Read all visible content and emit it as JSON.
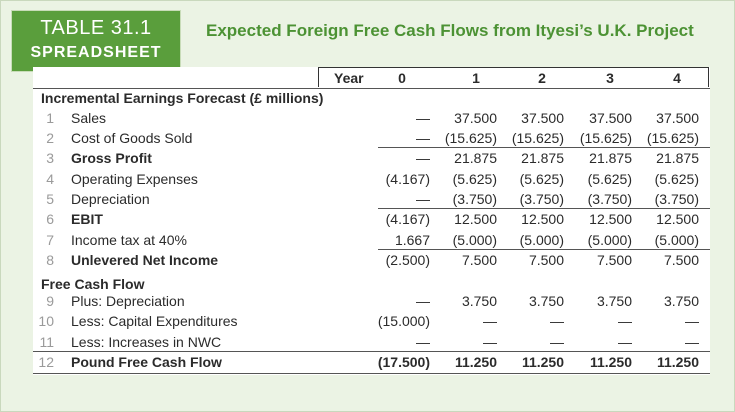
{
  "badge": {
    "line1": "TABLE 31.1",
    "line2": "SPREADSHEET"
  },
  "title": "Expected Foreign Free Cash Flows from Ityesi’s U.K. Project",
  "header": {
    "year_label": "Year",
    "years": [
      "0",
      "1",
      "2",
      "3",
      "4"
    ]
  },
  "sections": [
    {
      "title": "Incremental Earnings Forecast (£ millions)",
      "rows": [
        {
          "num": "1",
          "label": "Sales",
          "bold": false,
          "values": [
            "—",
            "37.500",
            "37.500",
            "37.500",
            "37.500"
          ]
        },
        {
          "num": "2",
          "label": "Cost of Goods Sold",
          "bold": false,
          "values": [
            "—",
            "(15.625)",
            "(15.625)",
            "(15.625)",
            "(15.625)"
          ]
        },
        {
          "num": "3",
          "label": "Gross Profit",
          "bold": true,
          "values": [
            "—",
            "21.875",
            "21.875",
            "21.875",
            "21.875"
          ]
        },
        {
          "num": "4",
          "label": "Operating Expenses",
          "bold": false,
          "values": [
            "(4.167)",
            "(5.625)",
            "(5.625)",
            "(5.625)",
            "(5.625)"
          ]
        },
        {
          "num": "5",
          "label": "Depreciation",
          "bold": false,
          "values": [
            "—",
            "(3.750)",
            "(3.750)",
            "(3.750)",
            "(3.750)"
          ]
        },
        {
          "num": "6",
          "label": "EBIT",
          "bold": true,
          "values": [
            "(4.167)",
            "12.500",
            "12.500",
            "12.500",
            "12.500"
          ]
        },
        {
          "num": "7",
          "label": "Income tax at 40%",
          "bold": false,
          "values": [
            "1.667",
            "(5.000)",
            "(5.000)",
            "(5.000)",
            "(5.000)"
          ]
        },
        {
          "num": "8",
          "label": "Unlevered Net Income",
          "bold": true,
          "values": [
            "(2.500)",
            "7.500",
            "7.500",
            "7.500",
            "7.500"
          ]
        }
      ]
    },
    {
      "title": "Free Cash Flow",
      "rows": [
        {
          "num": "9",
          "label": "Plus: Depreciation",
          "bold": false,
          "values": [
            "—",
            "3.750",
            "3.750",
            "3.750",
            "3.750"
          ]
        },
        {
          "num": "10",
          "label": "Less: Capital Expenditures",
          "bold": false,
          "values": [
            "(15.000)",
            "—",
            "—",
            "—",
            "—"
          ]
        },
        {
          "num": "11",
          "label": "Less: Increases in NWC",
          "bold": false,
          "values": [
            "—",
            "—",
            "—",
            "—",
            "—"
          ]
        },
        {
          "num": "12",
          "label": "Pound Free Cash Flow",
          "bold": true,
          "values": [
            "(17.500)",
            "11.250",
            "11.250",
            "11.250",
            "11.250"
          ]
        }
      ]
    }
  ],
  "colors": {
    "brand_green": "#5a9e3c",
    "title_green": "#4c9234",
    "panel_bg": "#ebf3e4"
  }
}
